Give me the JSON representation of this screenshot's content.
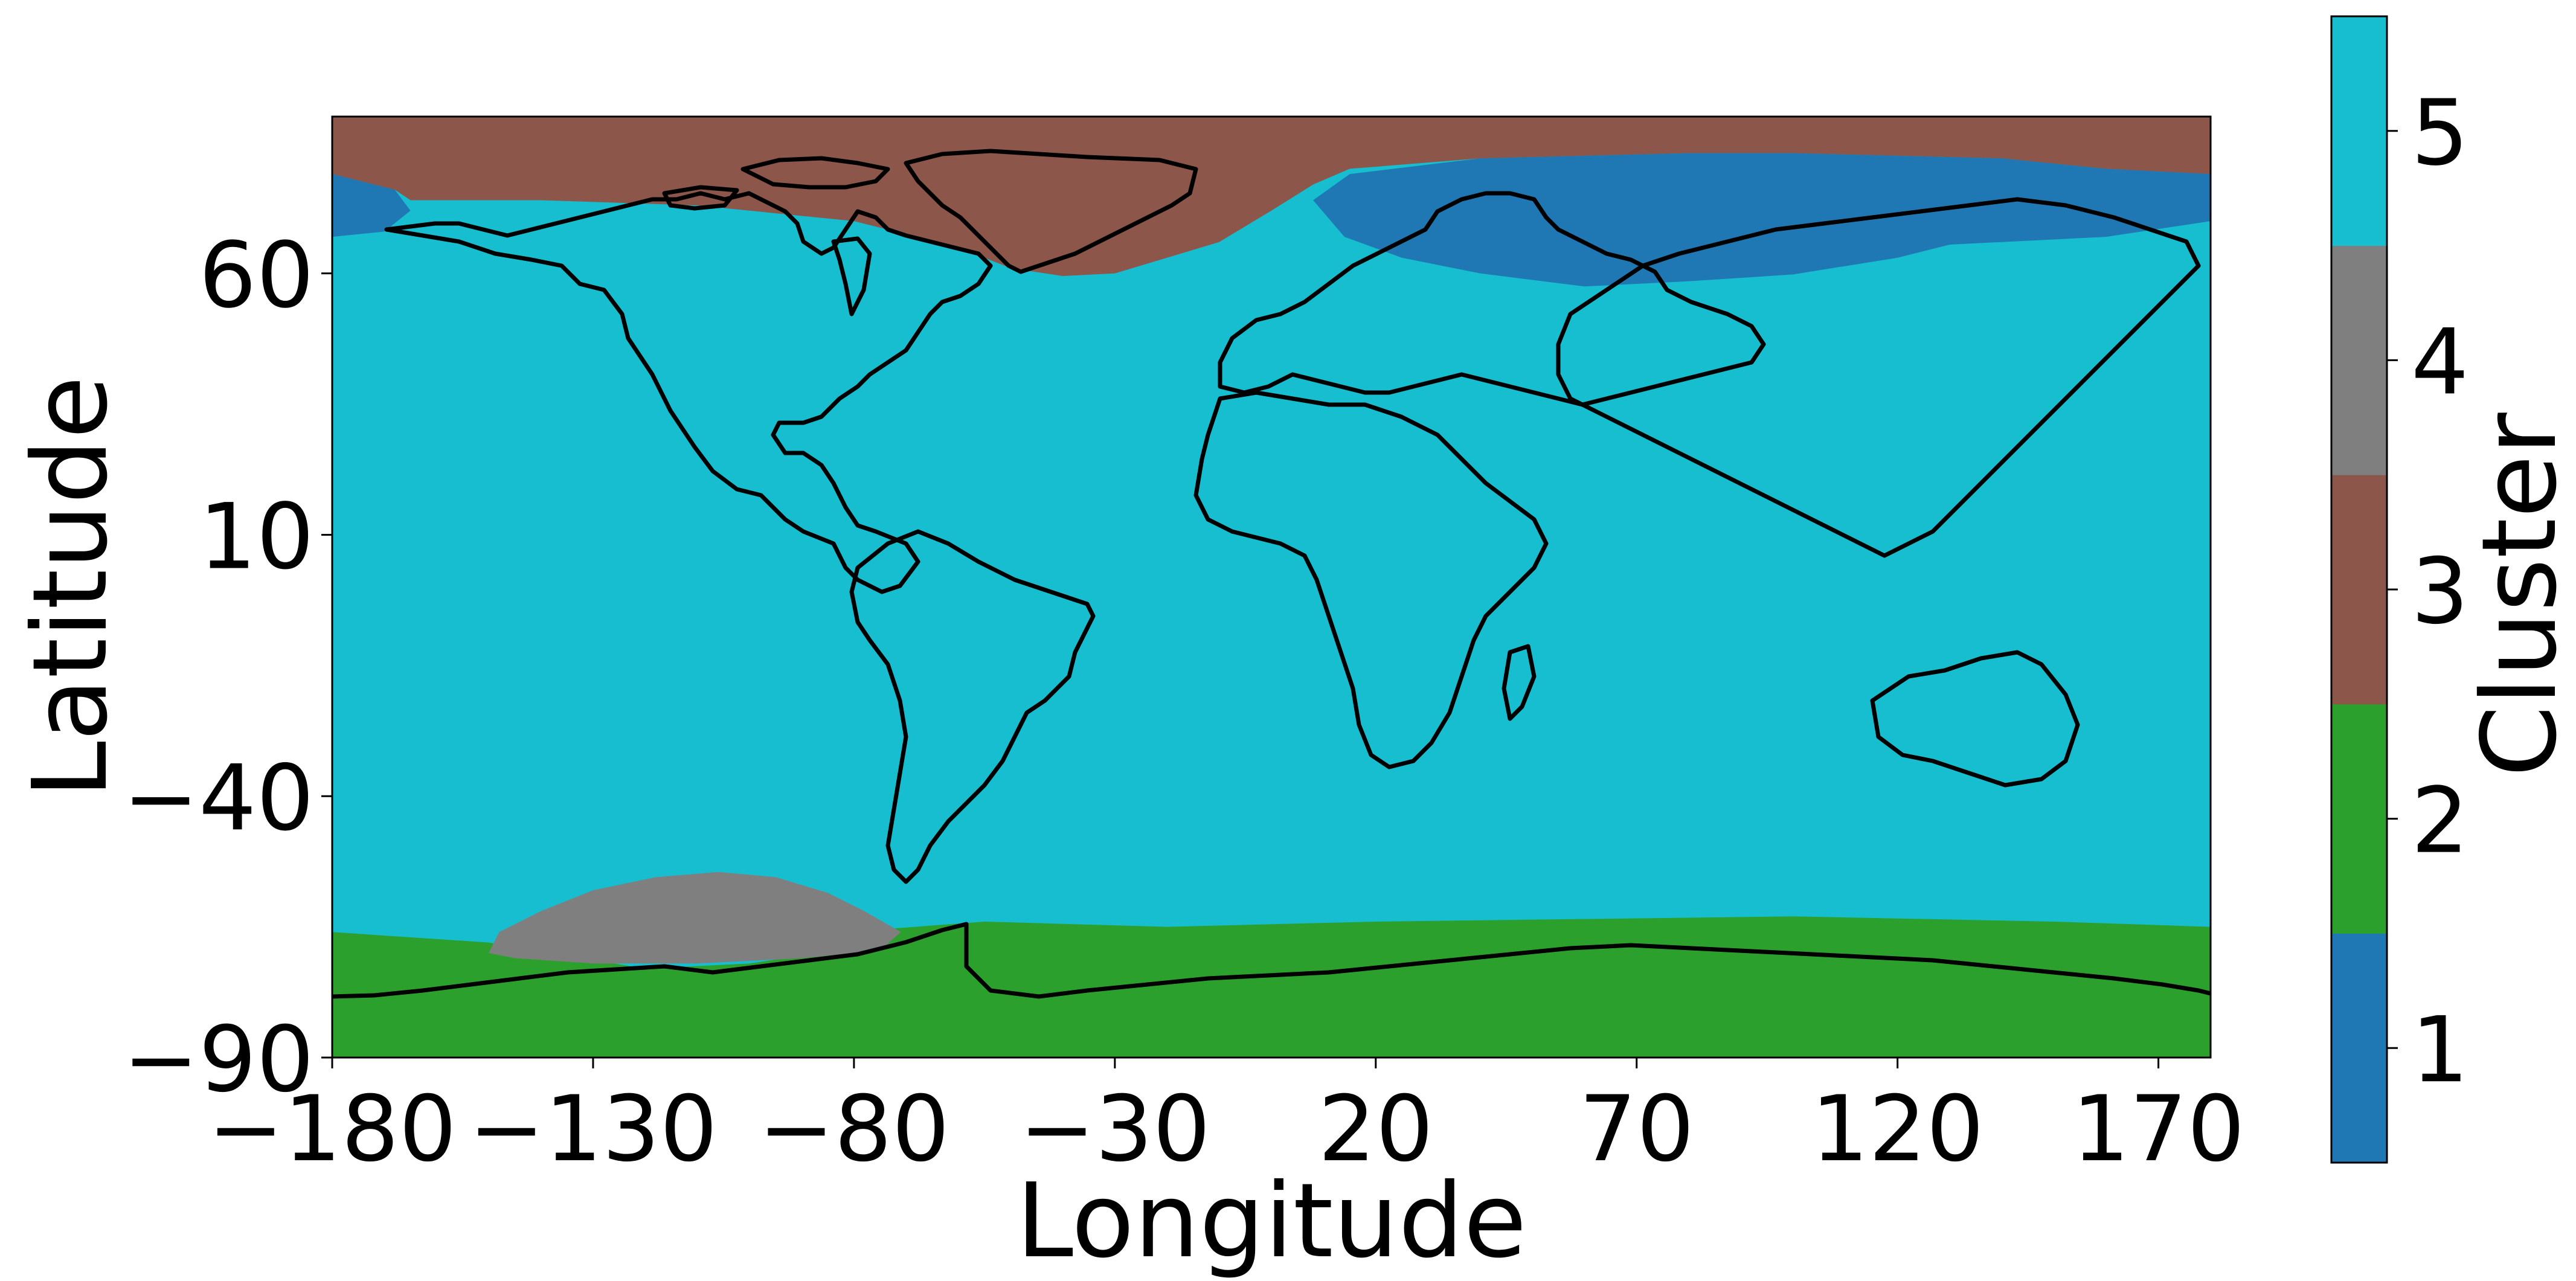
{
  "chart_data": {
    "type": "heatmap",
    "title": "",
    "xlabel": "Longitude",
    "ylabel": "Latitude",
    "xlim": [
      -180,
      180
    ],
    "ylim": [
      -90,
      90
    ],
    "x_ticks": [
      -180,
      -130,
      -80,
      -30,
      20,
      70,
      120,
      170
    ],
    "y_ticks": [
      -90,
      -40,
      10,
      60
    ],
    "x_tick_labels": [
      "−180",
      "−130",
      "−80",
      "−30",
      "20",
      "70",
      "120",
      "170"
    ],
    "y_tick_labels": [
      "−90",
      "−40",
      "10",
      "60"
    ],
    "grid": false,
    "colorbar": {
      "label": "Cluster",
      "levels": [
        {
          "value": 1,
          "label": "1",
          "color": "#1f77b4"
        },
        {
          "value": 2,
          "label": "2",
          "color": "#2ca02c"
        },
        {
          "value": 3,
          "label": "3",
          "color": "#8c564b"
        },
        {
          "value": 4,
          "label": "4",
          "color": "#7f7f7f"
        },
        {
          "value": 5,
          "label": "5",
          "color": "#17becf"
        }
      ]
    },
    "background_cluster": 5,
    "regions": [
      {
        "cluster": 3,
        "description": "Arctic cap (north of ~60-70N over Greenland / N. Atlantic / Pacific Arctic)",
        "boundary": [
          [
            -180,
            90
          ],
          [
            180,
            90
          ],
          [
            180,
            79
          ],
          [
            160,
            80
          ],
          [
            140,
            82
          ],
          [
            100,
            83
          ],
          [
            80,
            83
          ],
          [
            40,
            82
          ],
          [
            15,
            80
          ],
          [
            8,
            77
          ],
          [
            0,
            72
          ],
          [
            -10,
            66
          ],
          [
            -20,
            63
          ],
          [
            -30,
            60
          ],
          [
            -40,
            59.5
          ],
          [
            -50,
            61
          ],
          [
            -60,
            65
          ],
          [
            -80,
            70
          ],
          [
            -110,
            73
          ],
          [
            -140,
            74
          ],
          [
            -165,
            74
          ],
          [
            -168,
            76
          ],
          [
            -180,
            79
          ]
        ]
      },
      {
        "cluster": 1,
        "description": "Eurasian / Siberian high latitudes",
        "boundary": [
          [
            8,
            74
          ],
          [
            15,
            79
          ],
          [
            40,
            82
          ],
          [
            80,
            83
          ],
          [
            100,
            83
          ],
          [
            140,
            82
          ],
          [
            160,
            80
          ],
          [
            180,
            79
          ],
          [
            180,
            70
          ],
          [
            160,
            67
          ],
          [
            130,
            65.5
          ],
          [
            120,
            63
          ],
          [
            100,
            59.8
          ],
          [
            80,
            58.5
          ],
          [
            60,
            57.5
          ],
          [
            40,
            60
          ],
          [
            25,
            63
          ],
          [
            14,
            67
          ],
          [
            8,
            74
          ]
        ]
      },
      {
        "cluster": 1,
        "description": "Far-west Pacific Arctic wedge",
        "boundary": [
          [
            -180,
            79
          ],
          [
            -168,
            76
          ],
          [
            -165,
            72
          ],
          [
            -170,
            68
          ],
          [
            -180,
            67
          ]
        ]
      },
      {
        "cluster": 2,
        "description": "Antarctic / Southern Ocean band",
        "boundary": [
          [
            -180,
            -90
          ],
          [
            180,
            -90
          ],
          [
            180,
            -65
          ],
          [
            150,
            -64
          ],
          [
            100,
            -63
          ],
          [
            60,
            -63.5
          ],
          [
            20,
            -64
          ],
          [
            -20,
            -65
          ],
          [
            -55,
            -64
          ],
          [
            -75,
            -65.5
          ],
          [
            -80,
            -69
          ],
          [
            -100,
            -72
          ],
          [
            -120,
            -73
          ],
          [
            -150,
            -68
          ],
          [
            -180,
            -66
          ]
        ]
      },
      {
        "cluster": 4,
        "description": "South Pacific grey lens",
        "boundary": [
          [
            -150,
            -70
          ],
          [
            -148,
            -66
          ],
          [
            -140,
            -62
          ],
          [
            -130,
            -58
          ],
          [
            -118,
            -55.5
          ],
          [
            -106,
            -54.5
          ],
          [
            -95,
            -55.5
          ],
          [
            -85,
            -58.5
          ],
          [
            -78,
            -62
          ],
          [
            -71,
            -66
          ],
          [
            -75,
            -69.5
          ],
          [
            -90,
            -71
          ],
          [
            -110,
            -72
          ],
          [
            -130,
            -72
          ],
          [
            -145,
            -71
          ]
        ]
      }
    ],
    "coastline_note": "Black continental coastline outlines (Natural Earth style) overlaid on the cluster field."
  }
}
